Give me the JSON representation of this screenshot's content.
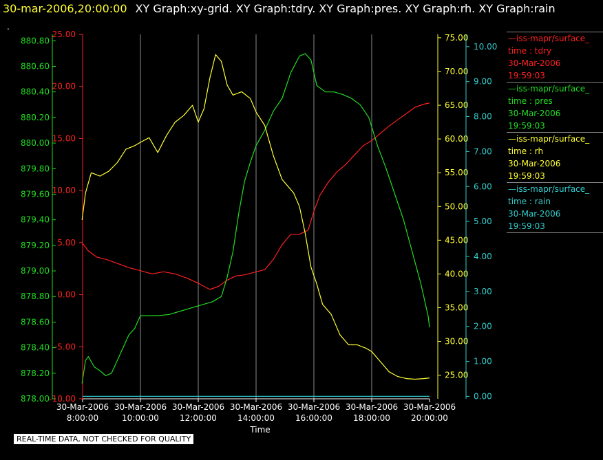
{
  "header": {
    "datetime": "30-mar-2006,20:00:00",
    "titles": "XY Graph:xy-grid.  XY Graph:tdry.  XY Graph:pres.  XY Graph:rh.  XY Graph:rain"
  },
  "dot": ".",
  "quality_note": "REAL-TIME DATA, NOT CHECKED FOR QUALITY",
  "legend": [
    {
      "title": "—iss-mapr/surface_",
      "line2": "time : tdry",
      "line3": "30-Mar-2006",
      "line4": "19:59:03",
      "color": "#ff2020"
    },
    {
      "title": "—iss-mapr/surface_",
      "line2": "time : pres",
      "line3": "30-Mar-2006",
      "line4": "19:59:03",
      "color": "#22dd22"
    },
    {
      "title": "—iss-mapr/surface_",
      "line2": "time : rh",
      "line3": "30-Mar-2006",
      "line4": "19:59:03",
      "color": "#ffff33"
    },
    {
      "title": "—iss-mapr/surface_",
      "line2": "time : rain",
      "line3": "30-Mar-2006",
      "line4": "19:59:03",
      "color": "#33cccc"
    }
  ],
  "chart_data": {
    "type": "line",
    "xlabel": "Time",
    "x_ticks": [
      {
        "date": "30-Mar-2006",
        "time": "8:00:00",
        "hour": 8
      },
      {
        "date": "30-Mar-2006",
        "time": "10:00:00",
        "hour": 10
      },
      {
        "date": "30-Mar-2006",
        "time": "12:00:00",
        "hour": 12
      },
      {
        "date": "30-Mar-2006",
        "time": "14:00:00",
        "hour": 14
      },
      {
        "date": "30-Mar-2006",
        "time": "16:00:00",
        "hour": 16
      },
      {
        "date": "30-Mar-2006",
        "time": "18:00:00",
        "hour": 18
      },
      {
        "date": "30-Mar-2006",
        "time": "20:00:00",
        "hour": 20
      }
    ],
    "xlim": [
      8,
      20
    ],
    "grid": "vertical",
    "axes": {
      "pres": {
        "ylim": [
          878.0,
          880.85
        ],
        "ticks": [
          "878.00",
          "878.20",
          "878.40",
          "878.60",
          "878.80",
          "879.00",
          "879.20",
          "879.40",
          "879.60",
          "879.80",
          "880.00",
          "880.20",
          "880.40",
          "880.60",
          "880.80"
        ],
        "color": "#22dd22"
      },
      "tdry": {
        "ylim": [
          -10,
          25
        ],
        "ticks": [
          "-10.00",
          "-5.00",
          "0.00",
          "5.00",
          "10.00",
          "15.00",
          "20.00",
          "25.00"
        ],
        "color": "#ff2020"
      },
      "rh": {
        "ylim": [
          21.5,
          75.5
        ],
        "ticks": [
          "25.00",
          "30.00",
          "35.00",
          "40.00",
          "45.00",
          "50.00",
          "55.00",
          "60.00",
          "65.00",
          "70.00",
          "75.00"
        ],
        "color": "#ffff33"
      },
      "rain": {
        "ylim": [
          -0.07,
          10.35
        ],
        "ticks": [
          "0.00",
          "1.00",
          "2.00",
          "3.00",
          "4.00",
          "5.00",
          "6.00",
          "7.00",
          "8.00",
          "9.00",
          "10.00"
        ],
        "color": "#33cccc"
      }
    },
    "series": [
      {
        "name": "tdry",
        "axis": "tdry",
        "color": "#ff2020",
        "x": [
          7.98,
          8.2,
          8.5,
          8.8,
          9.2,
          9.6,
          10.0,
          10.4,
          10.8,
          11.2,
          11.6,
          12.0,
          12.2,
          12.4,
          12.7,
          13.0,
          13.3,
          13.6,
          14.0,
          14.3,
          14.6,
          14.9,
          15.2,
          15.5,
          15.8,
          16.0,
          16.2,
          16.5,
          16.8,
          17.1,
          17.4,
          17.7,
          18.0,
          18.3,
          18.6,
          18.9,
          19.2,
          19.5,
          19.8,
          20.0
        ],
        "y": [
          5.0,
          4.2,
          3.6,
          3.4,
          3.0,
          2.6,
          2.3,
          2.0,
          2.2,
          2.0,
          1.6,
          1.1,
          0.8,
          0.5,
          0.8,
          1.4,
          1.8,
          1.9,
          2.2,
          2.4,
          3.4,
          4.8,
          5.8,
          5.8,
          6.2,
          8.0,
          9.5,
          10.8,
          11.8,
          12.5,
          13.4,
          14.3,
          14.8,
          15.5,
          16.2,
          16.8,
          17.4,
          18.0,
          18.3,
          18.4
        ]
      },
      {
        "name": "pres",
        "axis": "pres",
        "color": "#22dd22",
        "x": [
          7.98,
          8.1,
          8.2,
          8.4,
          8.6,
          8.8,
          9.0,
          9.2,
          9.4,
          9.6,
          9.8,
          10.0,
          10.2,
          10.6,
          11.0,
          11.3,
          11.6,
          11.9,
          12.2,
          12.5,
          12.8,
          13.0,
          13.2,
          13.4,
          13.6,
          13.8,
          14.0,
          14.3,
          14.6,
          14.9,
          15.2,
          15.5,
          15.7,
          15.9,
          16.1,
          16.4,
          16.7,
          17.0,
          17.3,
          17.6,
          17.9,
          18.2,
          18.5,
          18.8,
          19.1,
          19.4,
          19.7,
          19.95,
          20.0
        ],
        "y": [
          878.12,
          878.3,
          878.33,
          878.25,
          878.22,
          878.18,
          878.2,
          878.3,
          878.4,
          878.5,
          878.55,
          878.65,
          878.65,
          878.65,
          878.66,
          878.68,
          878.7,
          878.72,
          878.74,
          878.76,
          878.8,
          878.95,
          879.15,
          879.45,
          879.7,
          879.85,
          879.98,
          880.1,
          880.25,
          880.35,
          880.55,
          880.68,
          880.7,
          880.65,
          880.45,
          880.4,
          880.4,
          880.38,
          880.35,
          880.3,
          880.2,
          879.98,
          879.8,
          879.6,
          879.4,
          879.15,
          878.9,
          878.65,
          878.56
        ]
      },
      {
        "name": "rh",
        "axis": "rh",
        "color": "#ffff33",
        "x": [
          7.98,
          8.1,
          8.3,
          8.6,
          8.9,
          9.2,
          9.5,
          9.8,
          10.0,
          10.3,
          10.6,
          10.9,
          11.2,
          11.5,
          11.8,
          12.0,
          12.2,
          12.4,
          12.6,
          12.8,
          13.0,
          13.2,
          13.5,
          13.8,
          14.0,
          14.3,
          14.6,
          14.9,
          15.1,
          15.3,
          15.5,
          15.7,
          15.9,
          16.1,
          16.3,
          16.6,
          16.9,
          17.2,
          17.5,
          17.8,
          18.0,
          18.3,
          18.6,
          18.9,
          19.2,
          19.5,
          19.8,
          20.0
        ],
        "y": [
          48.0,
          52.0,
          55.0,
          54.5,
          55.2,
          56.5,
          58.5,
          59.0,
          59.5,
          60.2,
          58.0,
          60.5,
          62.5,
          63.5,
          65.0,
          62.5,
          64.5,
          69.0,
          72.5,
          71.5,
          68.0,
          66.5,
          67.0,
          66.0,
          64.0,
          62.0,
          57.5,
          54.0,
          53.0,
          52.0,
          50.0,
          46.0,
          41.0,
          38.5,
          35.5,
          34.0,
          31.0,
          29.5,
          29.5,
          29.0,
          28.5,
          27.0,
          25.5,
          24.8,
          24.5,
          24.4,
          24.5,
          24.6
        ]
      },
      {
        "name": "rain",
        "axis": "rain",
        "color": "#33cccc",
        "x": [
          8.0,
          20.0
        ],
        "y": [
          0.0,
          0.0
        ]
      }
    ]
  }
}
